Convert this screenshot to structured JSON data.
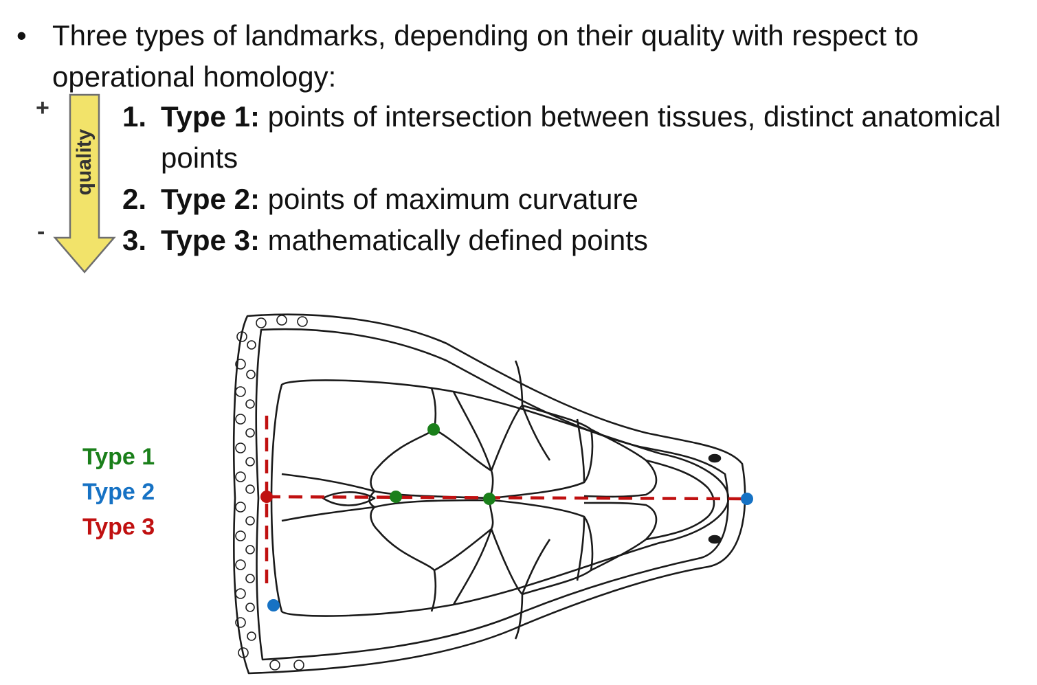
{
  "bullet": {
    "symbol": "•",
    "text": "Three types of landmarks, depending on their quality with respect to operational homology:"
  },
  "list": [
    {
      "num": "1.",
      "type": "Type 1:",
      "desc": " points of intersection between tissues, distinct anatomical points"
    },
    {
      "num": "2.",
      "type": "Type 2:",
      "desc": " points of maximum curvature"
    },
    {
      "num": "3.",
      "type": "Type 3:",
      "desc": " mathematically defined points"
    }
  ],
  "quality_scale": {
    "label": "quality",
    "plus": "+",
    "minus": "-",
    "fill_color": "#f2e36a",
    "stroke_color": "#6e6e6e"
  },
  "legend": [
    {
      "label": "Type 1",
      "color": "#1a7f1a"
    },
    {
      "label": "Type 2",
      "color": "#1672c4"
    },
    {
      "label": "Type 3",
      "color": "#c01010"
    }
  ],
  "figure": {
    "subject": "lizard-skull-dorsal-view",
    "line_color": "#1a1a1a",
    "type3_line_color": "#c01010"
  }
}
